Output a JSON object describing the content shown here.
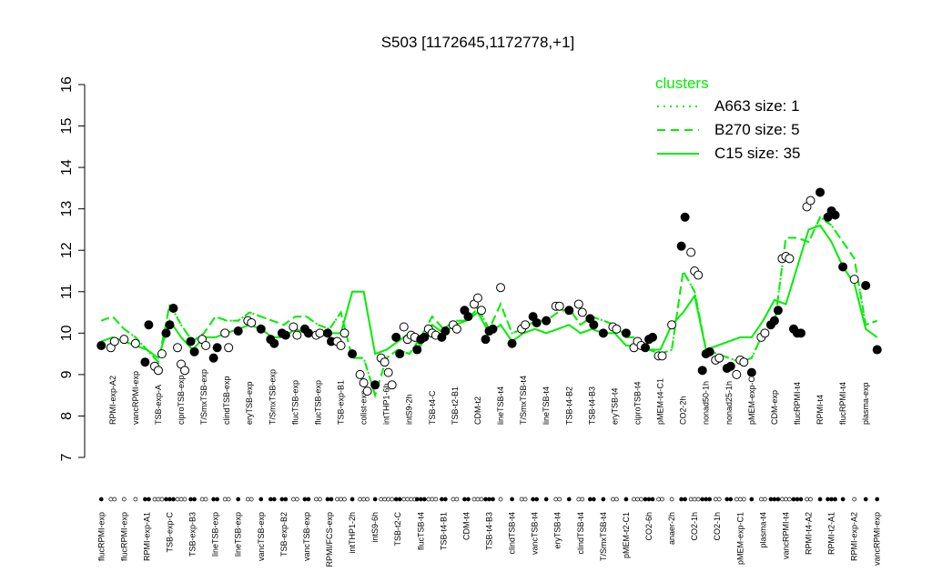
{
  "chart_data": {
    "type": "dot",
    "title": "S503 [1172645,1172778,+1]",
    "ylim": [
      7,
      16
    ],
    "yticks": [
      7,
      8,
      9,
      10,
      11,
      12,
      13,
      14,
      15,
      16
    ],
    "legend_title": "clusters",
    "legend_position": "top-right",
    "color": "#00ee00",
    "categories": [
      "flucRPMI-exp",
      "RPMI-exp-A2",
      "flucRPMI-exp",
      "vancRPMI-exp",
      "RPMI-exp-A1",
      "TSB-exp-A",
      "TSB-exp-C",
      "ciproTSB-exp",
      "TSB-exp-B3",
      "T/SmxTSB-exp",
      "lineTSB-exp",
      "clindTSB-exp",
      "lineTSB-exp",
      "eryTSB-exp",
      "vancTSB-exp",
      "T/SmxTSB-exp",
      "TSB-exp-B2",
      "flucTSB-exp",
      "vancTSB-exp",
      "flucTSB-exp",
      "RPMI/FCS-exp",
      "TSB-exp-B1",
      "intTHP1-2h",
      "colist-exp",
      "intS9-6h",
      "intTHP1-6h",
      "TSB-t2-C",
      "intS9-2h",
      "flucTSB-t4",
      "TSB-t4-C",
      "TSB-t4-B1",
      "TSB-t2-B1",
      "CDM-t4",
      "CDM-t2",
      "TSB-t4-B3",
      "lineTSB-t4",
      "clindTSB-t4",
      "T/SmxTSB-t4",
      "vancTSB-t4",
      "lineTSB-t4",
      "eryTSB-t4",
      "TSB-t4-B2",
      "clindTSB-t4",
      "TSB-t4-B3",
      "T/SmxTSB-t4",
      "eryTSB-t4",
      "pMEM-t2-C1",
      "ciproTSB-t4",
      "CO2-6h",
      "pMEM-t4-C1",
      "anaer-2h",
      "CO2-2h",
      "CO2-1h",
      "nonad50-1h",
      "CO2-1h",
      "nonad25-1h",
      "pMEM-exp-C1",
      "pMEM-exp-C2",
      "plasma-t4",
      "CDM-exp",
      "vancRPMI-t4",
      "flucRPMI-t4",
      "RPMI-t4-A2",
      "RPMI-t4",
      "RPMI-t2-A1",
      "flucRPMI-t4",
      "RPMI-exp-A2",
      "plasma-exp",
      "vancRPMI-exp"
    ],
    "points": [
      {
        "values": [
          9.7
        ],
        "filled": true
      },
      {
        "values": [
          9.65,
          9.8
        ],
        "filled": false
      },
      {
        "values": [
          9.85
        ],
        "filled": false
      },
      {
        "values": [
          9.75
        ],
        "filled": false
      },
      {
        "values": [
          9.3,
          10.2
        ],
        "filled": true
      },
      {
        "values": [
          9.2,
          9.1,
          9.5
        ],
        "filled": false
      },
      {
        "values": [
          10.0,
          10.2,
          10.6
        ],
        "filled": true
      },
      {
        "values": [
          9.65,
          9.25,
          9.1
        ],
        "filled": false
      },
      {
        "values": [
          9.8,
          9.55
        ],
        "filled": true
      },
      {
        "values": [
          9.85,
          9.7
        ],
        "filled": false
      },
      {
        "values": [
          9.4,
          9.65
        ],
        "filled": true
      },
      {
        "values": [
          10.0,
          9.65
        ],
        "filled": false
      },
      {
        "values": [
          10.05
        ],
        "filled": true
      },
      {
        "values": [
          10.3,
          10.25
        ],
        "filled": false
      },
      {
        "values": [
          10.1
        ],
        "filled": true
      },
      {
        "values": [
          9.85,
          9.75
        ],
        "filled": true
      },
      {
        "values": [
          10.0,
          9.95
        ],
        "filled": true
      },
      {
        "values": [
          10.15,
          9.95
        ],
        "filled": false
      },
      {
        "values": [
          10.1,
          10.0
        ],
        "filled": true
      },
      {
        "values": [
          9.95,
          10.0
        ],
        "filled": false
      },
      {
        "values": [
          10.0,
          9.8
        ],
        "filled": true
      },
      {
        "values": [
          9.8,
          9.7,
          10.0
        ],
        "filled": false
      },
      {
        "values": [
          9.5
        ],
        "filled": true
      },
      {
        "values": [
          9.0,
          8.8,
          8.6
        ],
        "filled": false
      },
      {
        "values": [
          8.75
        ],
        "filled": true
      },
      {
        "values": [
          9.4,
          9.3,
          9.05,
          8.75
        ],
        "filled": false
      },
      {
        "values": [
          9.9,
          9.5
        ],
        "filled": true
      },
      {
        "values": [
          10.15,
          9.85,
          9.95,
          9.9
        ],
        "filled": false
      },
      {
        "values": [
          9.6,
          9.85,
          9.9
        ],
        "filled": true
      },
      {
        "values": [
          10.1,
          10.0,
          9.95
        ],
        "filled": false
      },
      {
        "values": [
          9.9,
          10.05
        ],
        "filled": true
      },
      {
        "values": [
          10.2,
          10.1
        ],
        "filled": false
      },
      {
        "values": [
          10.55,
          10.4
        ],
        "filled": true
      },
      {
        "values": [
          10.7,
          10.85,
          10.55
        ],
        "filled": false
      },
      {
        "values": [
          9.85,
          10.05,
          10.1
        ],
        "filled": true
      },
      {
        "values": [
          11.1
        ],
        "filled": false
      },
      {
        "values": [
          9.75
        ],
        "filled": true
      },
      {
        "values": [
          10.1,
          10.2
        ],
        "filled": false
      },
      {
        "values": [
          10.4,
          10.25
        ],
        "filled": true
      },
      {
        "values": [
          10.3
        ],
        "filled": true
      },
      {
        "values": [
          10.65,
          10.65
        ],
        "filled": false
      },
      {
        "values": [
          10.55
        ],
        "filled": true
      },
      {
        "values": [
          10.7,
          10.5
        ],
        "filled": false
      },
      {
        "values": [
          10.35,
          10.2
        ],
        "filled": true
      },
      {
        "values": [
          10.0
        ],
        "filled": true
      },
      {
        "values": [
          10.15,
          10.1
        ],
        "filled": false
      },
      {
        "values": [
          10.0
        ],
        "filled": true
      },
      {
        "values": [
          9.65,
          9.8,
          9.7
        ],
        "filled": false
      },
      {
        "values": [
          9.65,
          9.85,
          9.9
        ],
        "filled": true
      },
      {
        "values": [
          9.45,
          9.45
        ],
        "filled": false
      },
      {
        "values": [
          10.2
        ],
        "filled": false
      },
      {
        "values": [
          12.1,
          12.8
        ],
        "filled": true
      },
      {
        "values": [
          11.95,
          11.5,
          11.4
        ],
        "filled": false
      },
      {
        "values": [
          9.1,
          9.5,
          9.55
        ],
        "filled": true
      },
      {
        "values": [
          9.35,
          9.4
        ],
        "filled": false
      },
      {
        "values": [
          9.15,
          9.2
        ],
        "filled": true
      },
      {
        "values": [
          9.0,
          9.35,
          9.3
        ],
        "filled": false
      },
      {
        "values": [
          9.05
        ],
        "filled": true
      },
      {
        "values": [
          9.9,
          10.0
        ],
        "filled": false
      },
      {
        "values": [
          10.2,
          10.3,
          10.55
        ],
        "filled": true
      },
      {
        "values": [
          11.8,
          11.85,
          11.8
        ],
        "filled": false
      },
      {
        "values": [
          10.1,
          10.0,
          10.0
        ],
        "filled": true
      },
      {
        "values": [
          13.05,
          13.2
        ],
        "filled": false
      },
      {
        "values": [
          13.4
        ],
        "filled": true
      },
      {
        "values": [
          12.8,
          12.95,
          12.85
        ],
        "filled": true
      },
      {
        "values": [
          11.6
        ],
        "filled": true
      },
      {
        "values": [
          11.3
        ],
        "filled": false
      },
      {
        "values": [
          11.15
        ],
        "filled": true
      },
      {
        "values": [
          9.6
        ],
        "filled": true
      }
    ],
    "series": [
      {
        "name": "A663 size: 1",
        "style": "dotted",
        "values": [
          10.3,
          10.4,
          10.1,
          9.9,
          9.6,
          9.3,
          10.7,
          10.2,
          9.8,
          10.0,
          10.4,
          10.3,
          10.3,
          10.5,
          10.4,
          10.3,
          10.2,
          10.4,
          10.4,
          10.2,
          10.1,
          10.5,
          9.4,
          9.4,
          8.5,
          9.4,
          9.6,
          9.5,
          9.9,
          10.4,
          10.1,
          10.3,
          10.3,
          10.6,
          10.1,
          10.7,
          10.0,
          10.1,
          10.3,
          10.3,
          10.5,
          10.6,
          10.2,
          10.4,
          10.3,
          10.2,
          9.9,
          9.9,
          9.6,
          9.5,
          9.6,
          11.5,
          11.0,
          9.6,
          9.5,
          9.4,
          9.3,
          9.4,
          10.0,
          10.2,
          12.3,
          12.3,
          12.2,
          12.8,
          12.6,
          12.2,
          11.8,
          10.2,
          10.3
        ]
      },
      {
        "name": "B270 size: 5",
        "style": "dashed",
        "values": [
          10.3,
          10.4,
          10.1,
          9.9,
          9.6,
          9.3,
          10.7,
          10.2,
          9.8,
          10.0,
          10.4,
          10.3,
          10.3,
          10.5,
          10.4,
          10.3,
          10.2,
          10.4,
          10.4,
          10.2,
          10.1,
          10.5,
          9.4,
          9.4,
          8.5,
          9.4,
          9.6,
          9.5,
          9.9,
          10.4,
          10.1,
          10.3,
          10.3,
          10.6,
          10.1,
          10.7,
          10.0,
          10.1,
          10.3,
          10.3,
          10.5,
          10.6,
          10.2,
          10.4,
          10.3,
          10.2,
          9.9,
          9.9,
          9.6,
          9.5,
          9.6,
          11.5,
          11.0,
          9.6,
          9.5,
          9.4,
          9.3,
          9.4,
          10.0,
          10.2,
          12.3,
          12.3,
          12.2,
          12.8,
          12.6,
          12.2,
          11.8,
          10.2,
          10.3
        ]
      },
      {
        "name": "C15 size: 35",
        "style": "solid",
        "values": [
          9.8,
          9.9,
          9.8,
          9.7,
          9.6,
          9.4,
          10.3,
          9.9,
          9.6,
          9.9,
          9.9,
          10.0,
          10.1,
          10.2,
          10.1,
          9.9,
          9.9,
          10.1,
          10.0,
          10.0,
          10.0,
          10.0,
          11.0,
          11.0,
          9.5,
          9.6,
          9.8,
          10.0,
          9.7,
          10.2,
          10.0,
          10.2,
          10.3,
          10.5,
          10.0,
          10.2,
          9.8,
          10.0,
          10.1,
          10.0,
          10.1,
          10.2,
          10.0,
          10.1,
          10.0,
          10.0,
          9.7,
          9.7,
          9.6,
          9.6,
          10.2,
          10.5,
          10.9,
          9.6,
          9.7,
          9.8,
          9.9,
          9.9,
          10.3,
          10.8,
          10.7,
          11.6,
          12.5,
          12.6,
          12.2,
          11.6,
          11.2,
          10.1,
          9.9
        ]
      }
    ]
  }
}
